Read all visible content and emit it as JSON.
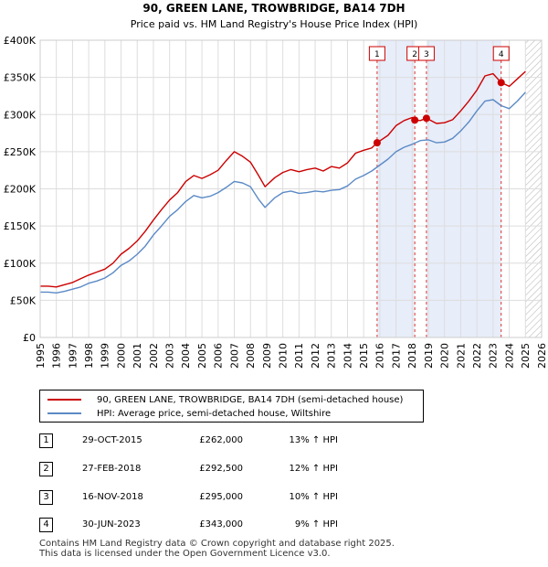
{
  "chart_data": {
    "type": "line",
    "title": "90, GREEN LANE, TROWBRIDGE, BA14 7DH",
    "subtitle": "Price paid vs. HM Land Registry's House Price Index (HPI)",
    "xlim": [
      1995,
      2026
    ],
    "ylim": [
      0,
      400000
    ],
    "x_ticks": [
      1995,
      1996,
      1997,
      1998,
      1999,
      2000,
      2001,
      2002,
      2003,
      2004,
      2005,
      2006,
      2007,
      2008,
      2009,
      2010,
      2011,
      2012,
      2013,
      2014,
      2015,
      2016,
      2017,
      2018,
      2019,
      2020,
      2021,
      2022,
      2023,
      2024,
      2025,
      2026
    ],
    "y_ticks": [
      0,
      50000,
      100000,
      150000,
      200000,
      250000,
      300000,
      350000,
      400000
    ],
    "y_tick_labels": [
      "£0",
      "£50K",
      "£100K",
      "£150K",
      "£200K",
      "£250K",
      "£300K",
      "£350K",
      "£400K"
    ],
    "grid": true,
    "forecast_start": 2025.0,
    "series": [
      {
        "name": "90, GREEN LANE, TROWBRIDGE, BA14 7DH (semi-detached house)",
        "color": "#cc0000",
        "points": [
          [
            1995.0,
            69000
          ],
          [
            1995.5,
            69000
          ],
          [
            1996.0,
            68000
          ],
          [
            1996.5,
            71000
          ],
          [
            1997.0,
            74000
          ],
          [
            1997.5,
            79000
          ],
          [
            1998.0,
            84000
          ],
          [
            1998.5,
            88000
          ],
          [
            1999.0,
            92000
          ],
          [
            1999.5,
            100000
          ],
          [
            2000.0,
            112000
          ],
          [
            2000.5,
            120000
          ],
          [
            2001.0,
            130000
          ],
          [
            2001.5,
            143000
          ],
          [
            2002.0,
            158000
          ],
          [
            2002.5,
            172000
          ],
          [
            2003.0,
            185000
          ],
          [
            2003.5,
            195000
          ],
          [
            2004.0,
            210000
          ],
          [
            2004.5,
            218000
          ],
          [
            2005.0,
            214000
          ],
          [
            2005.5,
            219000
          ],
          [
            2006.0,
            225000
          ],
          [
            2006.5,
            238000
          ],
          [
            2007.0,
            250000
          ],
          [
            2007.5,
            244000
          ],
          [
            2008.0,
            236000
          ],
          [
            2008.5,
            218000
          ],
          [
            2008.9,
            203000
          ],
          [
            2009.5,
            215000
          ],
          [
            2010.0,
            222000
          ],
          [
            2010.5,
            226000
          ],
          [
            2011.0,
            223000
          ],
          [
            2011.5,
            226000
          ],
          [
            2012.0,
            228000
          ],
          [
            2012.5,
            224000
          ],
          [
            2013.0,
            230000
          ],
          [
            2013.5,
            228000
          ],
          [
            2014.0,
            235000
          ],
          [
            2014.5,
            248000
          ],
          [
            2015.0,
            252000
          ],
          [
            2015.5,
            255000
          ],
          [
            2015.83,
            262000
          ],
          [
            2016.5,
            272000
          ],
          [
            2017.0,
            285000
          ],
          [
            2017.5,
            292000
          ],
          [
            2018.0,
            296000
          ],
          [
            2018.16,
            292500
          ],
          [
            2018.5,
            292000
          ],
          [
            2018.88,
            295000
          ],
          [
            2019.5,
            288000
          ],
          [
            2020.0,
            289000
          ],
          [
            2020.5,
            293000
          ],
          [
            2021.0,
            305000
          ],
          [
            2021.5,
            318000
          ],
          [
            2022.0,
            333000
          ],
          [
            2022.5,
            352000
          ],
          [
            2023.0,
            355000
          ],
          [
            2023.5,
            343000
          ],
          [
            2024.0,
            338000
          ],
          [
            2024.5,
            348000
          ],
          [
            2025.0,
            358000
          ]
        ]
      },
      {
        "name": "HPI: Average price, semi-detached house, Wiltshire",
        "color": "#5b8ac6",
        "points": [
          [
            1995.0,
            61000
          ],
          [
            1995.5,
            61000
          ],
          [
            1996.0,
            60000
          ],
          [
            1996.5,
            62000
          ],
          [
            1997.0,
            65000
          ],
          [
            1997.5,
            68000
          ],
          [
            1998.0,
            73000
          ],
          [
            1998.5,
            76000
          ],
          [
            1999.0,
            80000
          ],
          [
            1999.5,
            87000
          ],
          [
            2000.0,
            97000
          ],
          [
            2000.5,
            103000
          ],
          [
            2001.0,
            112000
          ],
          [
            2001.5,
            123000
          ],
          [
            2002.0,
            138000
          ],
          [
            2002.5,
            150000
          ],
          [
            2003.0,
            163000
          ],
          [
            2003.5,
            172000
          ],
          [
            2004.0,
            183000
          ],
          [
            2004.5,
            191000
          ],
          [
            2005.0,
            188000
          ],
          [
            2005.5,
            190000
          ],
          [
            2006.0,
            195000
          ],
          [
            2006.5,
            202000
          ],
          [
            2007.0,
            210000
          ],
          [
            2007.5,
            208000
          ],
          [
            2008.0,
            203000
          ],
          [
            2008.5,
            186000
          ],
          [
            2008.9,
            175000
          ],
          [
            2009.5,
            188000
          ],
          [
            2010.0,
            195000
          ],
          [
            2010.5,
            197000
          ],
          [
            2011.0,
            194000
          ],
          [
            2011.5,
            195000
          ],
          [
            2012.0,
            197000
          ],
          [
            2012.5,
            196000
          ],
          [
            2013.0,
            198000
          ],
          [
            2013.5,
            199000
          ],
          [
            2014.0,
            204000
          ],
          [
            2014.5,
            213000
          ],
          [
            2015.0,
            218000
          ],
          [
            2015.5,
            224000
          ],
          [
            2016.0,
            232000
          ],
          [
            2016.5,
            240000
          ],
          [
            2017.0,
            250000
          ],
          [
            2017.5,
            256000
          ],
          [
            2018.0,
            260000
          ],
          [
            2018.5,
            265000
          ],
          [
            2019.0,
            266000
          ],
          [
            2019.5,
            262000
          ],
          [
            2020.0,
            263000
          ],
          [
            2020.5,
            268000
          ],
          [
            2021.0,
            278000
          ],
          [
            2021.5,
            290000
          ],
          [
            2022.0,
            305000
          ],
          [
            2022.5,
            318000
          ],
          [
            2023.0,
            320000
          ],
          [
            2023.5,
            312000
          ],
          [
            2024.0,
            308000
          ],
          [
            2024.5,
            318000
          ],
          [
            2025.0,
            330000
          ]
        ]
      }
    ],
    "sales": [
      {
        "id": "1",
        "x": 2015.83,
        "price": 262000
      },
      {
        "id": "2",
        "x": 2018.16,
        "price": 292500
      },
      {
        "id": "3",
        "x": 2018.88,
        "price": 295000
      },
      {
        "id": "4",
        "x": 2023.5,
        "price": 343000
      }
    ],
    "shaded_spans": [
      [
        2015.83,
        2018.16
      ],
      [
        2018.88,
        2023.5
      ]
    ]
  },
  "legend": {
    "property_label": "90, GREEN LANE, TROWBRIDGE, BA14 7DH (semi-detached house)",
    "property_color": "#cc0000",
    "hpi_label": "HPI: Average price, semi-detached house, Wiltshire",
    "hpi_color": "#5b8ac6"
  },
  "transactions": [
    {
      "num": "1",
      "date": "29-OCT-2015",
      "price": "£262,000",
      "hpi": "13% ↑ HPI"
    },
    {
      "num": "2",
      "date": "27-FEB-2018",
      "price": "£292,500",
      "hpi": "12% ↑ HPI"
    },
    {
      "num": "3",
      "date": "16-NOV-2018",
      "price": "£295,000",
      "hpi": "10% ↑ HPI"
    },
    {
      "num": "4",
      "date": "30-JUN-2023",
      "price": "£343,000",
      "hpi": "9% ↑ HPI"
    }
  ],
  "footer": {
    "line1": "Contains HM Land Registry data © Crown copyright and database right 2025.",
    "line2": "This data is licensed under the Open Government Licence v3.0."
  }
}
